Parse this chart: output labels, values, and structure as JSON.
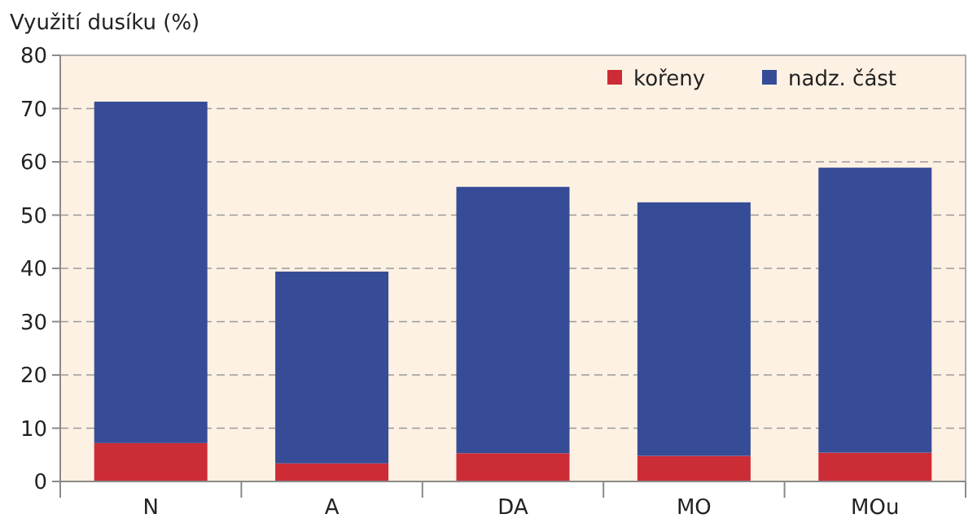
{
  "chart_data": {
    "type": "bar",
    "ylabel": "Využití dusíku (%)",
    "categories": [
      "N",
      "A",
      "DA",
      "MO",
      "MOu"
    ],
    "stacked": true,
    "series": [
      {
        "name": "kořeny",
        "color": "#cc2c36",
        "values": [
          7.2,
          3.4,
          5.3,
          4.8,
          5.4
        ]
      },
      {
        "name": "nadz. část",
        "color": "#364c97",
        "values": [
          64.1,
          36.0,
          50.0,
          47.6,
          53.5
        ]
      }
    ],
    "ylim": [
      0,
      80
    ],
    "yticks": [
      0,
      10,
      20,
      30,
      40,
      50,
      60,
      70,
      80
    ],
    "grid": "y",
    "legend": "top right"
  }
}
